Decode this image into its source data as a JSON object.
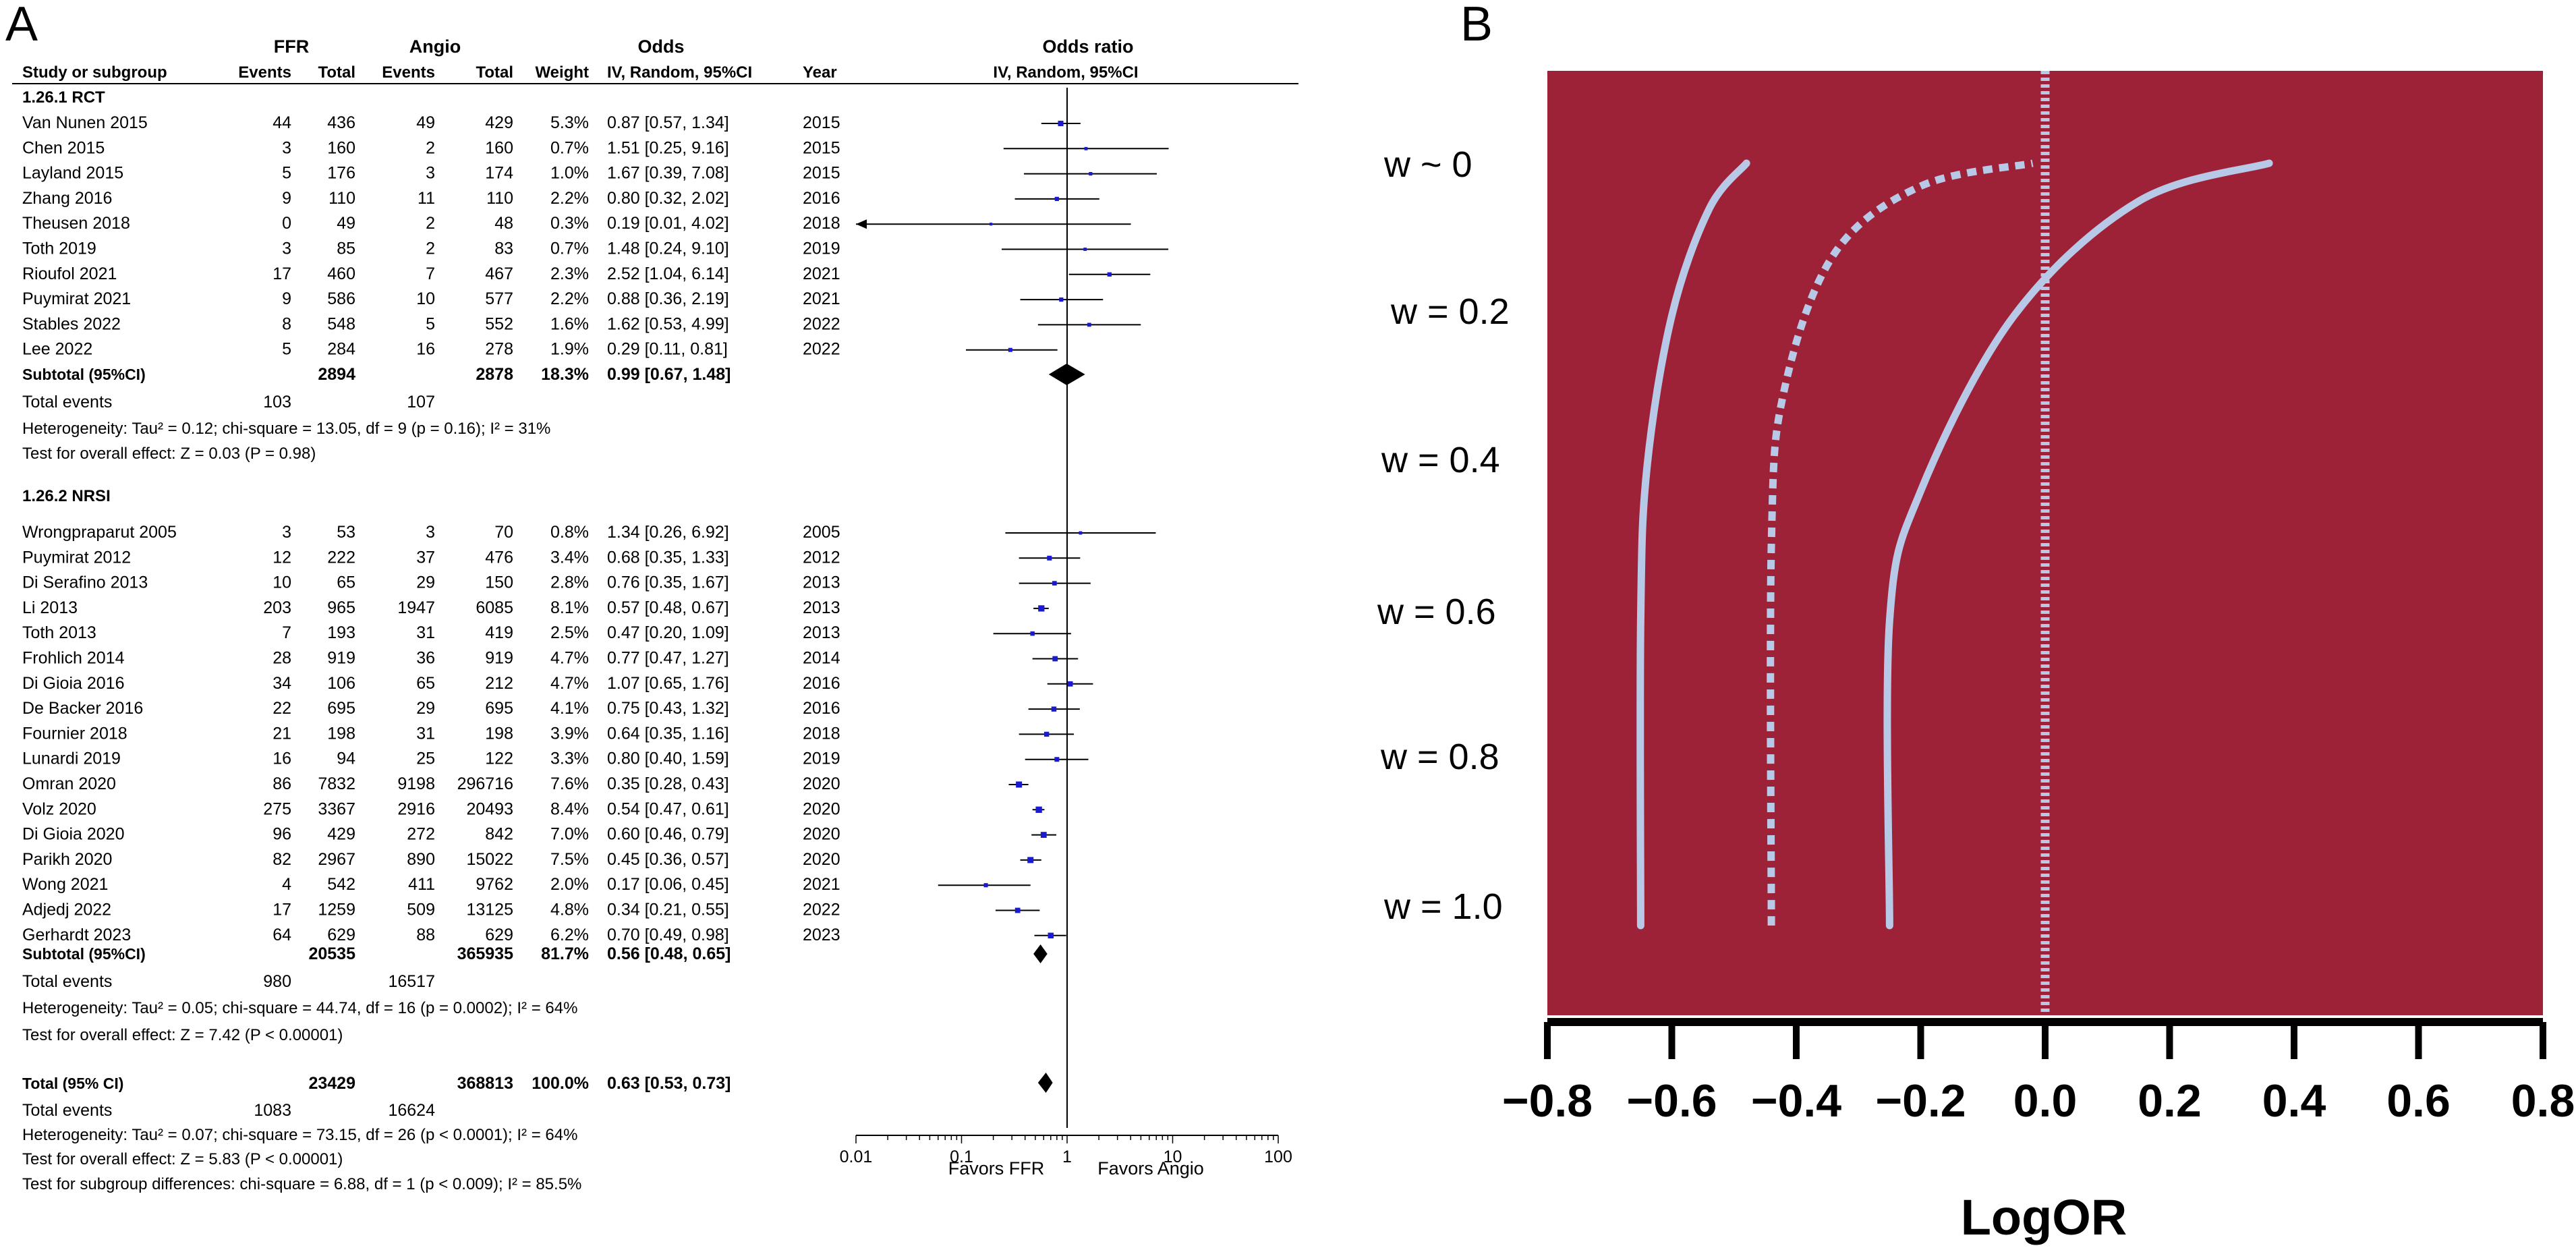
{
  "panel_a": {
    "panel_label": "A",
    "group_headers": {
      "ffr": "FFR",
      "angio": "Angio",
      "odds": "Odds",
      "odds_ratio": "Odds ratio"
    },
    "column_headers": {
      "study": "Study or subgroup",
      "ffr_events": "Events",
      "ffr_total": "Total",
      "angio_events": "Events",
      "angio_total": "Total",
      "weight": "Weight",
      "ci": "IV, Random, 95%CI",
      "year": "Year",
      "plot": "IV, Random, 95%CI"
    },
    "rct": {
      "title": "1.26.1 RCT",
      "subtotal": {
        "label": "Subtotal (95%CI)",
        "ffr_total": "2894",
        "angio_total": "2878",
        "weight": "18.3%",
        "ci": "0.99 [0.67, 1.48]"
      },
      "total_events": {
        "label": "Total events",
        "ffr": "103",
        "angio": "107"
      },
      "heterogeneity": "Heterogeneity: Tau² = 0.12;  chi-square = 13.05, df = 9 (p = 0.16); I² = 31%",
      "overall": "Test for overall effect: Z = 0.03 (P = 0.98)"
    },
    "nrsi": {
      "title": "1.26.2 NRSI",
      "subtotal": {
        "label": "Subtotal (95%CI)",
        "ffr_total": "20535",
        "angio_total": "365935",
        "weight": "81.7%",
        "ci": "0.56 [0.48, 0.65]"
      },
      "total_events": {
        "label": "Total events",
        "ffr": "980",
        "angio": "16517"
      },
      "heterogeneity": "Heterogeneity: Tau² = 0.05;  chi-square = 44.74, df = 16 (p = 0.0002); I² = 64%",
      "overall": "Test for overall effect: Z = 7.42 (P < 0.00001)"
    },
    "total": {
      "label": "Total (95% CI)",
      "ffr_total": "23429",
      "angio_total": "368813",
      "weight": "100.0%",
      "ci": "0.63 [0.53, 0.73]",
      "events_label": "Total events",
      "ffr_events": "1083",
      "angio_events": "16624",
      "heterogeneity": "Heterogeneity: Tau² = 0.07;  chi-square = 73.15, df = 26 (p < 0.0001); I² = 64%",
      "overall": "Test for overall effect: Z = 5.83 (P < 0.00001)",
      "subgroup": "Test for subgroup differences: chi-square = 6.88, df = 1 (p < 0.009); I² = 85.5%"
    },
    "axis": {
      "ticks": [
        "0.01",
        "0.1",
        "1",
        "10",
        "100"
      ],
      "favors_left": "Favors FFR",
      "favors_right": "Favors Angio"
    }
  },
  "panel_b": {
    "panel_label": "B",
    "background_color": "#9e2237",
    "curve_color": "#b7c9e6",
    "w_labels": [
      "w ~ 0",
      "w = 0.2",
      "w = 0.4",
      "w = 0.6",
      "w = 0.8",
      "w = 1.0"
    ],
    "axis_ticks": [
      "−0.8",
      "−0.6",
      "−0.4",
      "−0.2",
      "0.0",
      "0.2",
      "0.4",
      "0.6",
      "0.8"
    ],
    "xlabel": "LogOR"
  },
  "chart_data": [
    {
      "type": "forest",
      "title": "Odds ratio",
      "scale": "log",
      "xlim": [
        0.01,
        100
      ],
      "rct_studies": [
        {
          "name": "Van Nunen 2015",
          "ffr_events": "44",
          "ffr_total": "436",
          "angio_events": "49",
          "angio_total": "429",
          "weight": "5.3%",
          "ci_text": "0.87 [0.57, 1.34]",
          "year": "2015",
          "or": 0.87,
          "lo": 0.57,
          "hi": 1.34
        },
        {
          "name": "Chen 2015",
          "ffr_events": "3",
          "ffr_total": "160",
          "angio_events": "2",
          "angio_total": "160",
          "weight": "0.7%",
          "ci_text": "1.51 [0.25, 9.16]",
          "year": "2015",
          "or": 1.51,
          "lo": 0.25,
          "hi": 9.16
        },
        {
          "name": "Layland 2015",
          "ffr_events": "5",
          "ffr_total": "176",
          "angio_events": "3",
          "angio_total": "174",
          "weight": "1.0%",
          "ci_text": "1.67 [0.39, 7.08]",
          "year": "2015",
          "or": 1.67,
          "lo": 0.39,
          "hi": 7.08
        },
        {
          "name": "Zhang 2016",
          "ffr_events": "9",
          "ffr_total": "110",
          "angio_events": "11",
          "angio_total": "110",
          "weight": "2.2%",
          "ci_text": "0.80 [0.32, 2.02]",
          "year": "2016",
          "or": 0.8,
          "lo": 0.32,
          "hi": 2.02
        },
        {
          "name": "Theusen 2018",
          "ffr_events": "0",
          "ffr_total": "49",
          "angio_events": "2",
          "angio_total": "48",
          "weight": "0.3%",
          "ci_text": "0.19 [0.01, 4.02]",
          "year": "2018",
          "or": 0.19,
          "lo": 0.01,
          "hi": 4.02
        },
        {
          "name": "Toth 2019",
          "ffr_events": "3",
          "ffr_total": "85",
          "angio_events": "2",
          "angio_total": "83",
          "weight": "0.7%",
          "ci_text": "1.48 [0.24, 9.10]",
          "year": "2019",
          "or": 1.48,
          "lo": 0.24,
          "hi": 9.1
        },
        {
          "name": "Rioufol 2021",
          "ffr_events": "17",
          "ffr_total": "460",
          "angio_events": "7",
          "angio_total": "467",
          "weight": "2.3%",
          "ci_text": "2.52 [1.04, 6.14]",
          "year": "2021",
          "or": 2.52,
          "lo": 1.04,
          "hi": 6.14
        },
        {
          "name": "Puymirat 2021",
          "ffr_events": "9",
          "ffr_total": "586",
          "angio_events": "10",
          "angio_total": "577",
          "weight": "2.2%",
          "ci_text": "0.88 [0.36, 2.19]",
          "year": "2021",
          "or": 0.88,
          "lo": 0.36,
          "hi": 2.19
        },
        {
          "name": "Stables 2022",
          "ffr_events": "8",
          "ffr_total": "548",
          "angio_events": "5",
          "angio_total": "552",
          "weight": "1.6%",
          "ci_text": "1.62 [0.53, 4.99]",
          "year": "2022",
          "or": 1.62,
          "lo": 0.53,
          "hi": 4.99
        },
        {
          "name": "Lee 2022",
          "ffr_events": "5",
          "ffr_total": "284",
          "angio_events": "16",
          "angio_total": "278",
          "weight": "1.9%",
          "ci_text": "0.29 [0.11, 0.81]",
          "year": "2022",
          "or": 0.29,
          "lo": 0.11,
          "hi": 0.81
        }
      ],
      "nrsi_studies": [
        {
          "name": "Wrongpraparut 2005",
          "ffr_events": "3",
          "ffr_total": "53",
          "angio_events": "3",
          "angio_total": "70",
          "weight": "0.8%",
          "ci_text": "1.34 [0.26, 6.92]",
          "year": "2005",
          "or": 1.34,
          "lo": 0.26,
          "hi": 6.92
        },
        {
          "name": "Puymirat 2012",
          "ffr_events": "12",
          "ffr_total": "222",
          "angio_events": "37",
          "angio_total": "476",
          "weight": "3.4%",
          "ci_text": "0.68 [0.35, 1.33]",
          "year": "2012",
          "or": 0.68,
          "lo": 0.35,
          "hi": 1.33
        },
        {
          "name": "Di Serafino 2013",
          "ffr_events": "10",
          "ffr_total": "65",
          "angio_events": "29",
          "angio_total": "150",
          "weight": "2.8%",
          "ci_text": "0.76 [0.35, 1.67]",
          "year": "2013",
          "or": 0.76,
          "lo": 0.35,
          "hi": 1.67
        },
        {
          "name": "Li 2013",
          "ffr_events": "203",
          "ffr_total": "965",
          "angio_events": "1947",
          "angio_total": "6085",
          "weight": "8.1%",
          "ci_text": "0.57 [0.48, 0.67]",
          "year": "2013",
          "or": 0.57,
          "lo": 0.48,
          "hi": 0.67
        },
        {
          "name": "Toth 2013",
          "ffr_events": "7",
          "ffr_total": "193",
          "angio_events": "31",
          "angio_total": "419",
          "weight": "2.5%",
          "ci_text": "0.47 [0.20, 1.09]",
          "year": "2013",
          "or": 0.47,
          "lo": 0.2,
          "hi": 1.09
        },
        {
          "name": "Frohlich 2014",
          "ffr_events": "28",
          "ffr_total": "919",
          "angio_events": "36",
          "angio_total": "919",
          "weight": "4.7%",
          "ci_text": "0.77 [0.47, 1.27]",
          "year": "2014",
          "or": 0.77,
          "lo": 0.47,
          "hi": 1.27
        },
        {
          "name": "Di Gioia 2016",
          "ffr_events": "34",
          "ffr_total": "106",
          "angio_events": "65",
          "angio_total": "212",
          "weight": "4.7%",
          "ci_text": "1.07 [0.65, 1.76]",
          "year": "2016",
          "or": 1.07,
          "lo": 0.65,
          "hi": 1.76
        },
        {
          "name": "De Backer 2016",
          "ffr_events": "22",
          "ffr_total": "695",
          "angio_events": "29",
          "angio_total": "695",
          "weight": "4.1%",
          "ci_text": "0.75 [0.43, 1.32]",
          "year": "2016",
          "or": 0.75,
          "lo": 0.43,
          "hi": 1.32
        },
        {
          "name": "Fournier 2018",
          "ffr_events": "21",
          "ffr_total": "198",
          "angio_events": "31",
          "angio_total": "198",
          "weight": "3.9%",
          "ci_text": "0.64 [0.35, 1.16]",
          "year": "2018",
          "or": 0.64,
          "lo": 0.35,
          "hi": 1.16
        },
        {
          "name": "Lunardi 2019",
          "ffr_events": "16",
          "ffr_total": "94",
          "angio_events": "25",
          "angio_total": "122",
          "weight": "3.3%",
          "ci_text": "0.80 [0.40, 1.59]",
          "year": "2019",
          "or": 0.8,
          "lo": 0.4,
          "hi": 1.59
        },
        {
          "name": "Omran 2020",
          "ffr_events": "86",
          "ffr_total": "7832",
          "angio_events": "9198",
          "angio_total": "296716",
          "weight": "7.6%",
          "ci_text": "0.35 [0.28, 0.43]",
          "year": "2020",
          "or": 0.35,
          "lo": 0.28,
          "hi": 0.43
        },
        {
          "name": "Volz 2020",
          "ffr_events": "275",
          "ffr_total": "3367",
          "angio_events": "2916",
          "angio_total": "20493",
          "weight": "8.4%",
          "ci_text": "0.54 [0.47, 0.61]",
          "year": "2020",
          "or": 0.54,
          "lo": 0.47,
          "hi": 0.61
        },
        {
          "name": "Di Gioia 2020",
          "ffr_events": "96",
          "ffr_total": "429",
          "angio_events": "272",
          "angio_total": "842",
          "weight": "7.0%",
          "ci_text": "0.60 [0.46, 0.79]",
          "year": "2020",
          "or": 0.6,
          "lo": 0.46,
          "hi": 0.79
        },
        {
          "name": "Parikh 2020",
          "ffr_events": "82",
          "ffr_total": "2967",
          "angio_events": "890",
          "angio_total": "15022",
          "weight": "7.5%",
          "ci_text": "0.45 [0.36, 0.57]",
          "year": "2020",
          "or": 0.45,
          "lo": 0.36,
          "hi": 0.57
        },
        {
          "name": "Wong 2021",
          "ffr_events": "4",
          "ffr_total": "542",
          "angio_events": "411",
          "angio_total": "9762",
          "weight": "2.0%",
          "ci_text": "0.17 [0.06, 0.45]",
          "year": "2021",
          "or": 0.17,
          "lo": 0.06,
          "hi": 0.45
        },
        {
          "name": "Adjedj 2022",
          "ffr_events": "17",
          "ffr_total": "1259",
          "angio_events": "509",
          "angio_total": "13125",
          "weight": "4.8%",
          "ci_text": "0.34 [0.21, 0.55]",
          "year": "2022",
          "or": 0.34,
          "lo": 0.21,
          "hi": 0.55
        },
        {
          "name": "Gerhardt 2023",
          "ffr_events": "64",
          "ffr_total": "629",
          "angio_events": "88",
          "angio_total": "629",
          "weight": "6.2%",
          "ci_text": "0.70 [0.49, 0.98]",
          "year": "2023",
          "or": 0.7,
          "lo": 0.49,
          "hi": 0.98
        }
      ],
      "diamonds": [
        {
          "name": "rct-subtotal",
          "or": 0.99,
          "lo": 0.67,
          "hi": 1.48
        },
        {
          "name": "nrsi-subtotal",
          "or": 0.56,
          "lo": 0.48,
          "hi": 0.65
        },
        {
          "name": "overall",
          "or": 0.63,
          "lo": 0.53,
          "hi": 0.73
        }
      ]
    },
    {
      "type": "line",
      "title": "",
      "xlabel": "LogOR",
      "xlim": [
        -0.8,
        0.8
      ],
      "ylim": [
        1.0,
        0.0
      ],
      "series": [
        {
          "name": "curve-left",
          "style": "solid",
          "points": [
            [
              -0.65,
              1.0
            ],
            [
              -0.65,
              0.6
            ],
            [
              -0.64,
              0.4
            ],
            [
              -0.6,
              0.2
            ],
            [
              -0.54,
              0.06
            ],
            [
              -0.48,
              0.0
            ]
          ]
        },
        {
          "name": "curve-middle",
          "style": "dashed",
          "points": [
            [
              -0.44,
              1.0
            ],
            [
              -0.44,
              0.5
            ],
            [
              -0.42,
              0.3
            ],
            [
              -0.34,
              0.12
            ],
            [
              -0.2,
              0.03
            ],
            [
              -0.02,
              0.0
            ]
          ]
        },
        {
          "name": "curve-right",
          "style": "solid",
          "points": [
            [
              -0.25,
              1.0
            ],
            [
              -0.25,
              0.6
            ],
            [
              -0.2,
              0.43
            ],
            [
              -0.05,
              0.2
            ],
            [
              0.15,
              0.05
            ],
            [
              0.36,
              0.0
            ]
          ]
        },
        {
          "name": "reference-zero",
          "style": "dotted",
          "points": [
            [
              0.0,
              -0.08
            ],
            [
              0.0,
              1.1
            ]
          ]
        }
      ]
    }
  ]
}
